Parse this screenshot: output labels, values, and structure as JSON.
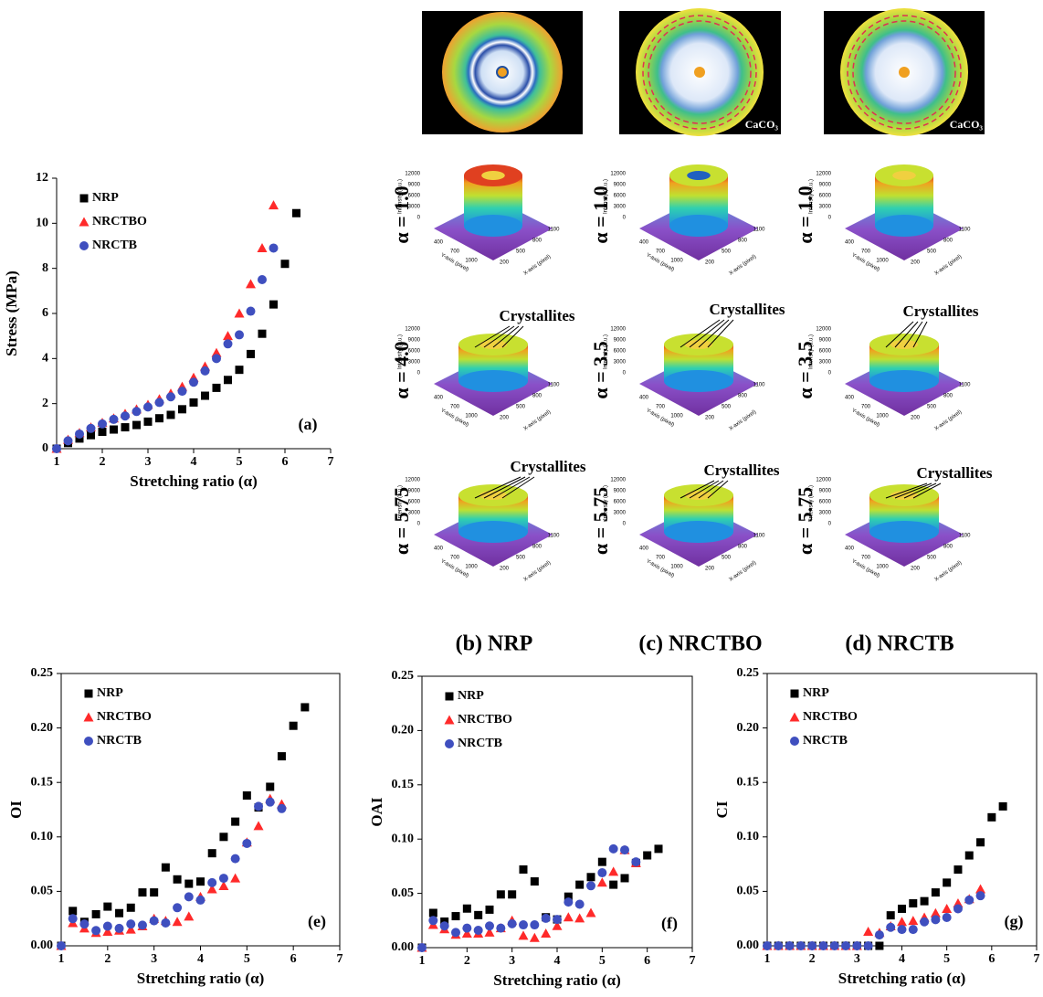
{
  "chart_data": [
    {
      "type": "scatter",
      "panel_label": "(a)",
      "x_label": "Stretching ratio (α)",
      "y_label": "Stress (MPa)",
      "xlim": [
        1,
        7
      ],
      "xticks": [
        1,
        2,
        3,
        4,
        5,
        6,
        7
      ],
      "ylim": [
        0,
        12
      ],
      "yticks": [
        0,
        2,
        4,
        6,
        8,
        10,
        12
      ],
      "frame": false,
      "legend": "upper left",
      "series": [
        {
          "name": "NRP",
          "color": "#000000",
          "marker": "square",
          "x": [
            1,
            1.25,
            1.5,
            1.75,
            2,
            2.25,
            2.5,
            2.75,
            3,
            3.25,
            3.5,
            3.75,
            4,
            4.25,
            4.5,
            4.75,
            5,
            5.25,
            5.5,
            5.75,
            6,
            6.25
          ],
          "values": [
            0,
            0.25,
            0.45,
            0.6,
            0.75,
            0.85,
            0.95,
            1.05,
            1.2,
            1.35,
            1.5,
            1.75,
            2.05,
            2.35,
            2.7,
            3.05,
            3.5,
            4.2,
            5.1,
            6.4,
            8.2,
            10.45
          ]
        },
        {
          "name": "NRCTBO",
          "color": "#ff2a2a",
          "marker": "triangle",
          "x": [
            1,
            1.25,
            1.5,
            1.75,
            2,
            2.25,
            2.5,
            2.75,
            3,
            3.25,
            3.5,
            3.75,
            4,
            4.25,
            4.5,
            4.75,
            5,
            5.25,
            5.5,
            5.75
          ],
          "values": [
            0,
            0.4,
            0.7,
            0.95,
            1.15,
            1.35,
            1.55,
            1.75,
            1.95,
            2.2,
            2.45,
            2.75,
            3.15,
            3.65,
            4.25,
            5.0,
            6.0,
            7.3,
            8.9,
            10.8
          ]
        },
        {
          "name": "NRCTB",
          "color": "#3f4fbf",
          "marker": "circle",
          "x": [
            1,
            1.25,
            1.5,
            1.75,
            2,
            2.25,
            2.5,
            2.75,
            3,
            3.25,
            3.5,
            3.75,
            4,
            4.25,
            4.5,
            4.75,
            5,
            5.25,
            5.5,
            5.75
          ],
          "values": [
            0,
            0.35,
            0.65,
            0.9,
            1.1,
            1.3,
            1.45,
            1.65,
            1.85,
            2.05,
            2.3,
            2.55,
            2.95,
            3.45,
            4.0,
            4.65,
            5.05,
            6.1,
            7.5,
            8.9
          ]
        }
      ]
    },
    {
      "type": "scatter",
      "panel_label": "(e)",
      "x_label": "Stretching ratio (α)",
      "y_label": "OI",
      "xlim": [
        1,
        7
      ],
      "xticks": [
        1,
        2,
        3,
        4,
        5,
        6,
        7
      ],
      "ylim": [
        0,
        0.25
      ],
      "yticks": [
        {
          "value": 0,
          "label": "0.00"
        },
        {
          "value": 0.05,
          "label": "0.05"
        },
        {
          "value": 0.1,
          "label": "0.10"
        },
        {
          "value": 0.15,
          "label": "0.15"
        },
        {
          "value": 0.2,
          "label": "0.20"
        },
        {
          "value": 0.25,
          "label": "0.25"
        }
      ],
      "frame": true,
      "legend": "upper left",
      "series": [
        {
          "name": "NRP",
          "color": "#000000",
          "marker": "square",
          "x": [
            1,
            1.25,
            1.5,
            1.75,
            2,
            2.25,
            2.5,
            2.75,
            3,
            3.25,
            3.5,
            3.75,
            4,
            4.25,
            4.5,
            4.75,
            5,
            5.25,
            5.5,
            5.75,
            6,
            6.25
          ],
          "values": [
            0,
            0.032,
            0.022,
            0.029,
            0.036,
            0.03,
            0.035,
            0.049,
            0.049,
            0.072,
            0.061,
            0.057,
            0.059,
            0.085,
            0.1,
            0.114,
            0.138,
            0.127,
            0.146,
            0.174,
            0.202,
            0.219
          ]
        },
        {
          "name": "NRCTBO",
          "color": "#ff2a2a",
          "marker": "triangle",
          "x": [
            1,
            1.25,
            1.5,
            1.75,
            2,
            2.25,
            2.5,
            2.75,
            3,
            3.25,
            3.5,
            3.75,
            4,
            4.25,
            4.5,
            4.75,
            5,
            5.25,
            5.5,
            5.75
          ],
          "values": [
            0,
            0.021,
            0.016,
            0.012,
            0.013,
            0.014,
            0.015,
            0.018,
            0.025,
            0.023,
            0.022,
            0.027,
            0.045,
            0.052,
            0.055,
            0.062,
            0.095,
            0.11,
            0.135,
            0.13
          ]
        },
        {
          "name": "NRCTB",
          "color": "#3f4fbf",
          "marker": "circle",
          "x": [
            1,
            1.25,
            1.5,
            1.75,
            2,
            2.25,
            2.5,
            2.75,
            3,
            3.25,
            3.5,
            3.75,
            4,
            4.25,
            4.5,
            4.75,
            5,
            5.25,
            5.5,
            5.75
          ],
          "values": [
            0,
            0.025,
            0.02,
            0.014,
            0.018,
            0.016,
            0.02,
            0.019,
            0.023,
            0.021,
            0.035,
            0.045,
            0.042,
            0.058,
            0.062,
            0.08,
            0.094,
            0.128,
            0.132,
            0.126
          ]
        }
      ]
    },
    {
      "type": "scatter",
      "panel_label": "(f)",
      "x_label": "Stretching ratio (α)",
      "y_label": "OAI",
      "xlim": [
        1,
        7
      ],
      "xticks": [
        1,
        2,
        3,
        4,
        5,
        6,
        7
      ],
      "ylim": [
        0,
        0.25
      ],
      "yticks": [
        {
          "value": 0,
          "label": "0.00"
        },
        {
          "value": 0.05,
          "label": "0.05"
        },
        {
          "value": 0.1,
          "label": "0.10"
        },
        {
          "value": 0.15,
          "label": "0.15"
        },
        {
          "value": 0.2,
          "label": "0.20"
        },
        {
          "value": 0.25,
          "label": "0.25"
        }
      ],
      "frame": true,
      "legend": "upper left",
      "series": [
        {
          "name": "NRP",
          "color": "#000000",
          "marker": "square",
          "x": [
            1,
            1.25,
            1.5,
            1.75,
            2,
            2.25,
            2.5,
            2.75,
            3,
            3.25,
            3.5,
            3.75,
            4,
            4.25,
            4.5,
            4.75,
            5,
            5.25,
            5.5,
            5.75,
            6,
            6.25
          ],
          "values": [
            0,
            0.032,
            0.024,
            0.029,
            0.036,
            0.03,
            0.035,
            0.049,
            0.049,
            0.072,
            0.061,
            0.028,
            0.026,
            0.047,
            0.058,
            0.065,
            0.079,
            0.058,
            0.064,
            0.078,
            0.085,
            0.091
          ]
        },
        {
          "name": "NRCTBO",
          "color": "#ff2a2a",
          "marker": "triangle",
          "x": [
            1,
            1.25,
            1.5,
            1.75,
            2,
            2.25,
            2.5,
            2.75,
            3,
            3.25,
            3.5,
            3.75,
            4,
            4.25,
            4.5,
            4.75,
            5,
            5.25,
            5.5,
            5.75
          ],
          "values": [
            0,
            0.021,
            0.017,
            0.012,
            0.013,
            0.013,
            0.014,
            0.018,
            0.025,
            0.011,
            0.009,
            0.013,
            0.02,
            0.028,
            0.027,
            0.032,
            0.06,
            0.07,
            0.09,
            0.078
          ]
        },
        {
          "name": "NRCTB",
          "color": "#3f4fbf",
          "marker": "circle",
          "x": [
            1,
            1.25,
            1.5,
            1.75,
            2,
            2.25,
            2.5,
            2.75,
            3,
            3.25,
            3.5,
            3.75,
            4,
            4.25,
            4.5,
            4.75,
            5,
            5.25,
            5.5,
            5.75
          ],
          "values": [
            0,
            0.025,
            0.02,
            0.014,
            0.018,
            0.016,
            0.02,
            0.018,
            0.022,
            0.021,
            0.021,
            0.027,
            0.026,
            0.042,
            0.04,
            0.057,
            0.069,
            0.091,
            0.09,
            0.079
          ]
        }
      ]
    },
    {
      "type": "scatter",
      "panel_label": "(g)",
      "x_label": "Stretching ratio (α)",
      "y_label": "CI",
      "xlim": [
        1,
        7
      ],
      "xticks": [
        1,
        2,
        3,
        4,
        5,
        6,
        7
      ],
      "ylim": [
        0,
        0.25
      ],
      "yticks": [
        {
          "value": 0,
          "label": "0.00"
        },
        {
          "value": 0.05,
          "label": "0.05"
        },
        {
          "value": 0.1,
          "label": "0.10"
        },
        {
          "value": 0.15,
          "label": "0.15"
        },
        {
          "value": 0.2,
          "label": "0.20"
        },
        {
          "value": 0.25,
          "label": "0.25"
        }
      ],
      "frame": true,
      "legend": "upper left",
      "series": [
        {
          "name": "NRP",
          "color": "#000000",
          "marker": "square",
          "x": [
            1,
            1.25,
            1.5,
            1.75,
            2,
            2.25,
            2.5,
            2.75,
            3,
            3.25,
            3.5,
            3.75,
            4,
            4.25,
            4.5,
            4.75,
            5,
            5.25,
            5.5,
            5.75,
            6,
            6.25
          ],
          "values": [
            0,
            0,
            0,
            0,
            0,
            0,
            0,
            0,
            0,
            0,
            0,
            0.028,
            0.034,
            0.039,
            0.041,
            0.049,
            0.058,
            0.07,
            0.083,
            0.095,
            0.118,
            0.128
          ]
        },
        {
          "name": "NRCTBO",
          "color": "#ff2a2a",
          "marker": "triangle",
          "x": [
            1,
            1.25,
            1.5,
            1.75,
            2,
            2.25,
            2.5,
            2.75,
            3,
            3.25,
            3.5,
            3.75,
            4,
            4.25,
            4.5,
            4.75,
            5,
            5.25,
            5.5,
            5.75
          ],
          "values": [
            0,
            0,
            0,
            0,
            0,
            0,
            0,
            0,
            0,
            0.013,
            0.012,
            0.018,
            0.022,
            0.023,
            0.026,
            0.03,
            0.034,
            0.039,
            0.043,
            0.052
          ]
        },
        {
          "name": "NRCTB",
          "color": "#3f4fbf",
          "marker": "circle",
          "x": [
            1,
            1.25,
            1.5,
            1.75,
            2,
            2.25,
            2.5,
            2.75,
            3,
            3.25,
            3.5,
            3.75,
            4,
            4.25,
            4.5,
            4.75,
            5,
            5.25,
            5.5,
            5.75
          ],
          "values": [
            0,
            0,
            0,
            0,
            0,
            0,
            0,
            0,
            0,
            0,
            0.01,
            0.017,
            0.015,
            0.015,
            0.022,
            0.024,
            0.026,
            0.034,
            0.042,
            0.046
          ]
        }
      ]
    }
  ],
  "panels": {
    "columns": [
      {
        "label": "(b) NRP",
        "alphas": [
          "α = 1.0",
          "α = 4.0",
          "α = 5.75"
        ]
      },
      {
        "label": "(c) NRCTBO",
        "alphas": [
          "α = 1.0",
          "α = 3.5",
          "α = 5.75"
        ],
        "image_label": "CaCO₃"
      },
      {
        "label": "(d) NRCTB",
        "alphas": [
          "α = 1.0",
          "α = 3.5",
          "α = 5.75"
        ],
        "image_label": "CaCO₃"
      }
    ],
    "annotation": "Crystallites",
    "surface_axes": {
      "z_label": "Intensity (a.u.)",
      "x_label": "X-axis (pixel)",
      "y_label": "Y-axis (pixel)",
      "z_ticks": [
        12000,
        9000,
        6000,
        3000,
        0
      ],
      "y_ticks": [
        400,
        700,
        1000
      ],
      "x_ticks": [
        200,
        500,
        800,
        1100
      ]
    }
  }
}
